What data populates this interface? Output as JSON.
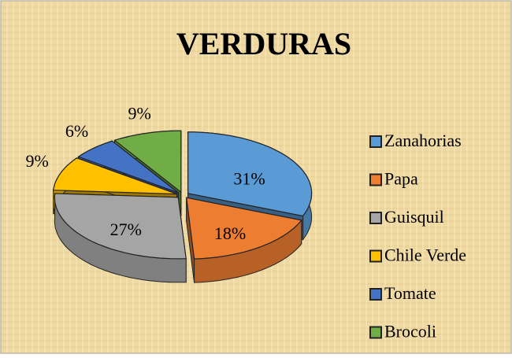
{
  "chart_data": {
    "type": "pie",
    "title": "VERDURAS",
    "categories": [
      "Zanahorias",
      "Papa",
      "Guisquil",
      "Chile Verde",
      "Tomate",
      "Brocoli"
    ],
    "values": [
      31,
      18,
      27,
      9,
      6,
      9
    ],
    "value_labels": [
      "31%",
      "18%",
      "27%",
      "9%",
      "6%",
      "9%"
    ],
    "colors": [
      "#5b9bd5",
      "#ed7d31",
      "#a5a5a5",
      "#ffc000",
      "#4472c4",
      "#70ad47"
    ],
    "legend": "right"
  }
}
